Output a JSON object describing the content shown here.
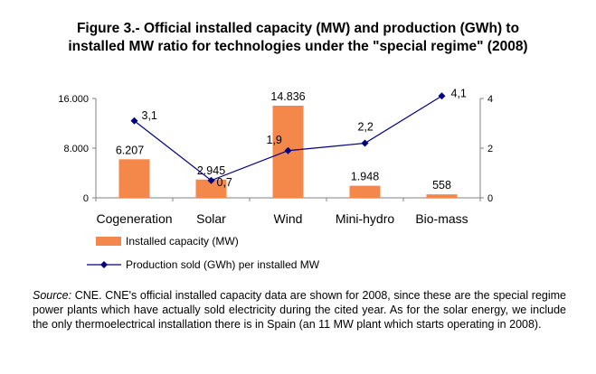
{
  "title_line1": "Figure 3.- Official installed capacity (MW) and production (GWh) to",
  "title_line2": "installed MW ratio for technologies under the \"special regime\" (2008)",
  "chart_data": {
    "type": "bar",
    "categories": [
      "Cogeneration",
      "Solar",
      "Wind",
      "Mini-hydro",
      "Bio-mass"
    ],
    "series": [
      {
        "name": "Installed capacity (MW)",
        "type": "bar",
        "axis": "left",
        "values": [
          6207,
          2945,
          14836,
          1948,
          558
        ],
        "labels": [
          "6.207",
          "2.945",
          "14.836",
          "1.948",
          "558"
        ],
        "color": "#F4884A"
      },
      {
        "name": "Production sold (GWh) per installed MW",
        "type": "line",
        "axis": "right",
        "values": [
          3.1,
          0.7,
          1.9,
          2.2,
          4.1
        ],
        "labels": [
          "3,1",
          "0,7",
          "1,9",
          "2,2",
          "4,1"
        ],
        "color": "#000080"
      }
    ],
    "y_left": {
      "ylim": [
        0,
        16000
      ],
      "ticks": [
        0,
        8000,
        16000
      ],
      "tick_labels": [
        "0",
        "8.000",
        "16.000"
      ]
    },
    "y_right": {
      "ylim": [
        0,
        4
      ],
      "ticks": [
        0,
        2,
        4
      ],
      "tick_labels": [
        "0",
        "2",
        "4"
      ]
    },
    "legend_position": "bottom-left",
    "grid": false
  },
  "source": {
    "label": "Source:",
    "text": " CNE. CNE's official installed capacity data are shown for 2008, since these are the special regime power plants which have actually sold electricity during the cited year. As for the solar energy, we include the only thermoelectrical installation there is in Spain (an 11 MW plant which starts operating in 2008)."
  },
  "colors": {
    "bar": "#F4884A",
    "line": "#000080",
    "axis": "#808080"
  }
}
